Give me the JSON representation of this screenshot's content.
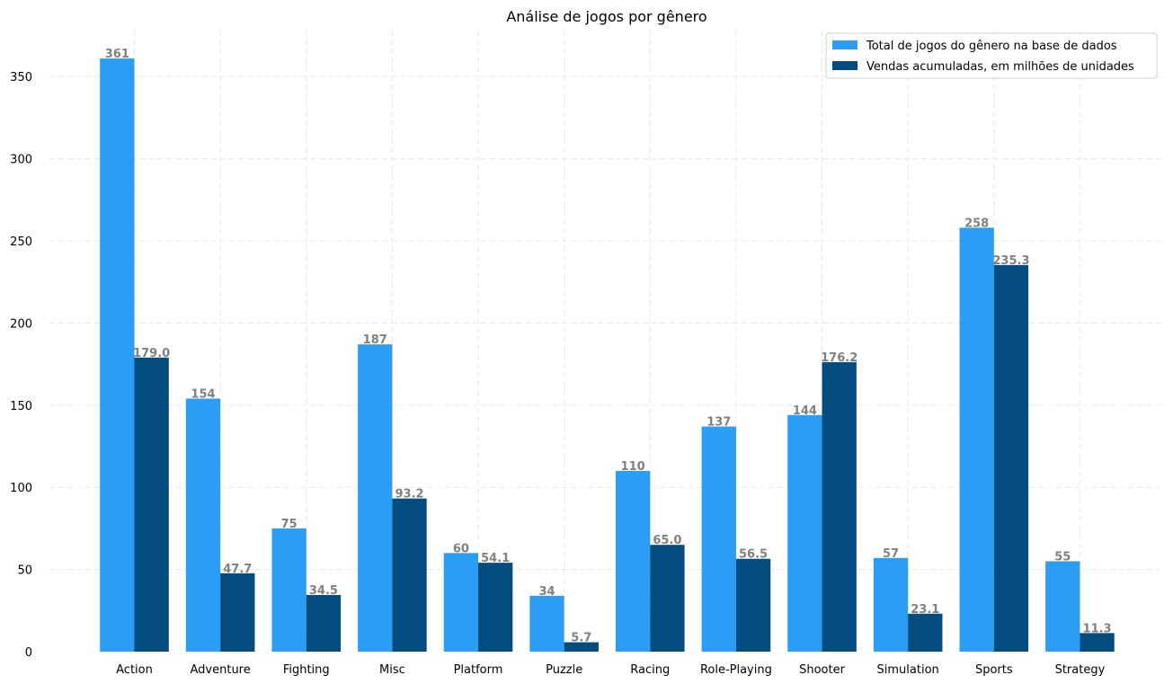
{
  "chart_data": {
    "type": "bar",
    "title": "Análise de jogos por gênero",
    "xlabel": "",
    "ylabel": "",
    "categories": [
      "Action",
      "Adventure",
      "Fighting",
      "Misc",
      "Platform",
      "Puzzle",
      "Racing",
      "Role-Playing",
      "Shooter",
      "Simulation",
      "Sports",
      "Strategy"
    ],
    "series": [
      {
        "name": "Total de jogos do gênero na base de dados",
        "values": [
          361,
          154,
          75,
          187,
          60,
          34,
          110,
          137,
          144,
          57,
          258,
          55
        ],
        "labels": [
          "361",
          "154",
          "75",
          "187",
          "60",
          "34",
          "110",
          "137",
          "144",
          "57",
          "258",
          "55"
        ],
        "color": "#2a9df4"
      },
      {
        "name": "Vendas acumuladas, em milhões de unidades",
        "values": [
          179.0,
          47.7,
          34.5,
          93.2,
          54.1,
          5.7,
          65.0,
          56.5,
          176.2,
          23.1,
          235.3,
          11.3
        ],
        "labels": [
          "179.0",
          "47.7",
          "34.5",
          "93.2",
          "54.1",
          "5.7",
          "65.0",
          "56.5",
          "176.2",
          "23.1",
          "235.3",
          "11.3"
        ],
        "color": "#034c80"
      }
    ],
    "ylim": [
      0,
      378
    ],
    "yticks": [
      0,
      50,
      100,
      150,
      200,
      250,
      300,
      350
    ],
    "ytick_labels": [
      "0",
      "50",
      "100",
      "150",
      "200",
      "250",
      "300",
      "350"
    ],
    "grid": true,
    "legend_position": "top-right"
  }
}
